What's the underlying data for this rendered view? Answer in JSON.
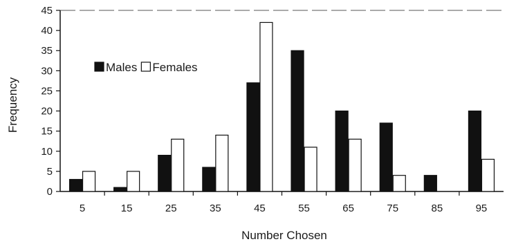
{
  "chart_data": {
    "type": "bar",
    "xlabel": "Number Chosen",
    "ylabel": "Frequency",
    "ylim": [
      0,
      45
    ],
    "yticks": [
      0,
      5,
      10,
      15,
      20,
      25,
      30,
      35,
      40,
      45
    ],
    "grid": false,
    "legend_position": "upper-left",
    "categories": [
      "5",
      "15",
      "25",
      "35",
      "45",
      "55",
      "65",
      "75",
      "85",
      "95"
    ],
    "series": [
      {
        "name": "Males",
        "color": "#111111",
        "values": [
          3,
          1,
          9,
          6,
          27,
          35,
          20,
          17,
          4,
          20
        ]
      },
      {
        "name": "Females",
        "color": "#ffffff",
        "values": [
          5,
          5,
          13,
          14,
          42,
          11,
          13,
          4,
          0,
          8
        ]
      }
    ]
  }
}
